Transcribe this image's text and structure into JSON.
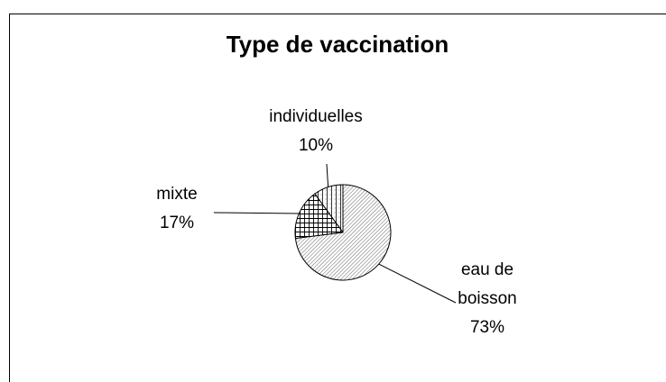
{
  "chart_data": {
    "type": "pie",
    "title": "Type de vaccination",
    "categories": [
      "individuelles",
      "mixte",
      "eau de boisson"
    ],
    "values": [
      10,
      17,
      73
    ],
    "value_labels": [
      "10%",
      "17%",
      "73%"
    ]
  }
}
